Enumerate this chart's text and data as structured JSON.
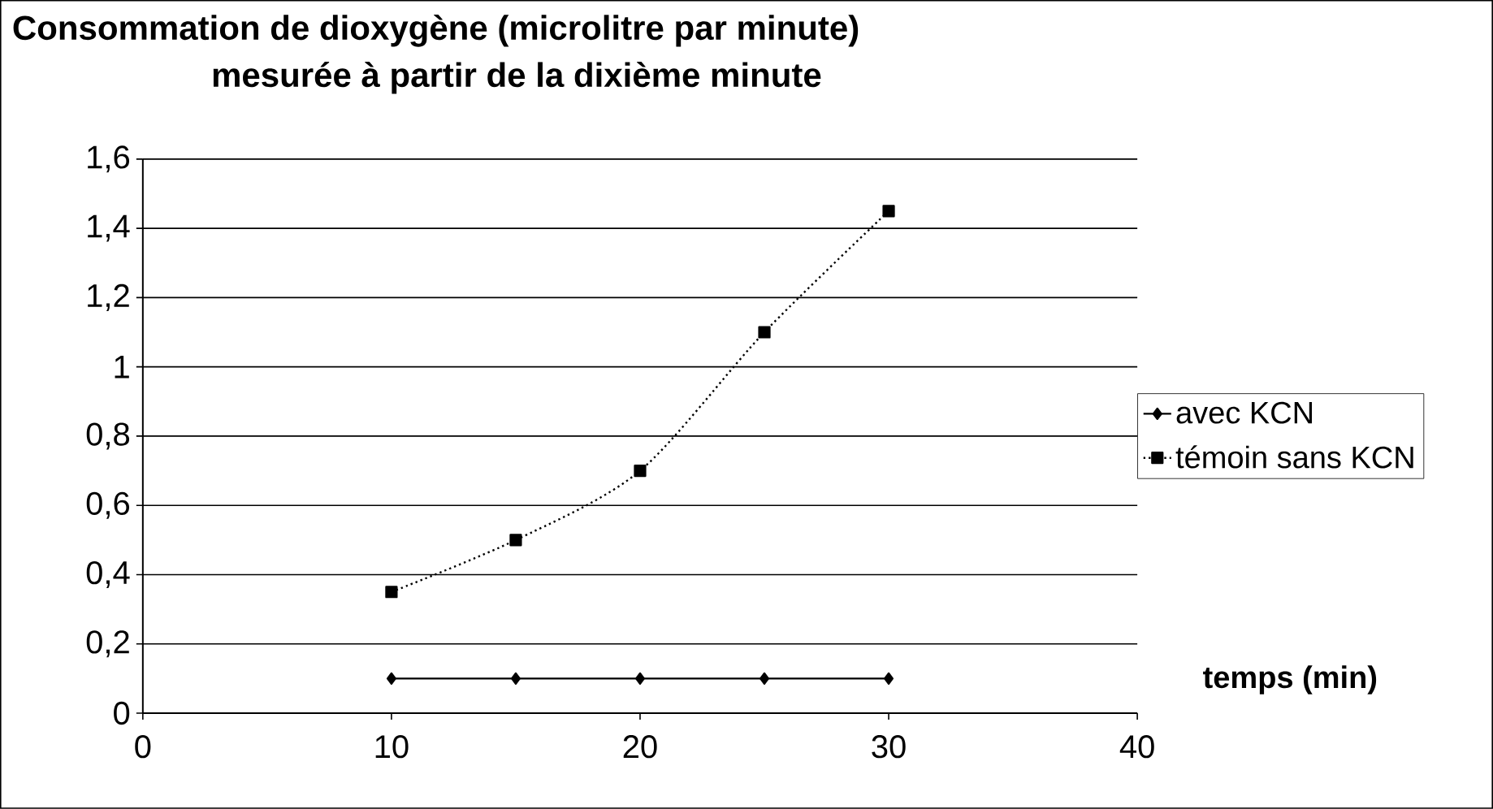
{
  "chart_data": {
    "type": "line",
    "title": "Consommation de dioxygène (microlitre par minute)",
    "subtitle": "mesurée à partir de la dixième minute",
    "xlabel": "temps (min)",
    "x": [
      10,
      15,
      20,
      25,
      30
    ],
    "series": [
      {
        "name": "avec KCN",
        "color": "#000000",
        "values": [
          0.1,
          0.1,
          0.1,
          0.1,
          0.1
        ],
        "marker": "diamond",
        "line_style": "solid"
      },
      {
        "name": "témoin sans KCN",
        "color": "#000000",
        "values": [
          0.35,
          0.5,
          0.7,
          1.1,
          1.45
        ],
        "marker": "square",
        "line_style": "dotted"
      }
    ],
    "xlim": [
      0,
      40
    ],
    "xticks": [
      0,
      10,
      20,
      30,
      40
    ],
    "ylim": [
      0,
      1.6
    ],
    "yticks": [
      0,
      {
        "value": 0.2,
        "label": "0,2"
      },
      {
        "value": 0.4,
        "label": "0,4"
      },
      {
        "value": 0.6,
        "label": "0,6"
      },
      {
        "value": 0.8,
        "label": "0,8"
      },
      1,
      {
        "value": 1.2,
        "label": "1,2"
      },
      {
        "value": 1.4,
        "label": "1,4"
      },
      {
        "value": 1.6,
        "label": "1,6"
      }
    ],
    "grid": "y",
    "legend": "right"
  }
}
